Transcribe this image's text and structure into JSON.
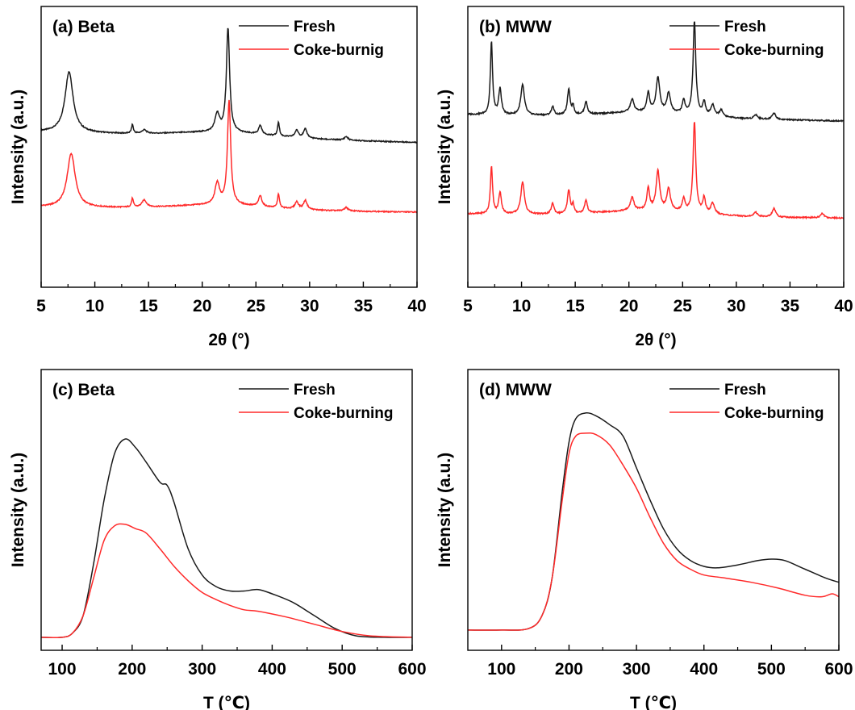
{
  "colors": {
    "fresh": "#1a1a1a",
    "coke": "#ff2a2a",
    "axis": "#000000"
  },
  "chart_data": [
    {
      "id": "a",
      "type": "line",
      "title": "(a) Beta",
      "xlabel": "2θ (°)",
      "ylabel": "Intensity (a.u.)",
      "xlim": [
        5,
        40
      ],
      "xticks": [
        5,
        10,
        15,
        20,
        25,
        30,
        35,
        40
      ],
      "grid": false,
      "legend": "top-right",
      "series": [
        {
          "name": "Fresh",
          "key": "fresh",
          "baseline": 0.42,
          "slope": -0.06,
          "peaks": [
            [
              7.6,
              0.34,
              0.45
            ],
            [
              13.5,
              0.05,
              0.1
            ],
            [
              14.6,
              0.02,
              0.25
            ],
            [
              21.4,
              0.1,
              0.25
            ],
            [
              22.4,
              0.58,
              0.18
            ],
            [
              25.4,
              0.05,
              0.18
            ],
            [
              27.1,
              0.08,
              0.1
            ],
            [
              28.8,
              0.04,
              0.2
            ],
            [
              29.6,
              0.05,
              0.2
            ],
            [
              33.4,
              0.02,
              0.2
            ]
          ]
        },
        {
          "name": "Coke-burnig",
          "key": "coke",
          "baseline": 0.0,
          "slope": -0.03,
          "peaks": [
            [
              7.8,
              0.3,
              0.45
            ],
            [
              13.5,
              0.05,
              0.1
            ],
            [
              14.6,
              0.04,
              0.25
            ],
            [
              21.4,
              0.12,
              0.25
            ],
            [
              22.5,
              0.58,
              0.18
            ],
            [
              25.4,
              0.06,
              0.18
            ],
            [
              27.1,
              0.08,
              0.1
            ],
            [
              28.8,
              0.04,
              0.2
            ],
            [
              29.6,
              0.05,
              0.2
            ],
            [
              33.4,
              0.02,
              0.2
            ]
          ]
        }
      ]
    },
    {
      "id": "b",
      "type": "line",
      "title": "(b) MWW",
      "xlabel": "2θ (°)",
      "ylabel": "Intensity (a.u.)",
      "xlim": [
        5,
        40
      ],
      "xticks": [
        5,
        10,
        15,
        20,
        25,
        30,
        35,
        40
      ],
      "grid": false,
      "legend": "top-right",
      "series": [
        {
          "name": "Fresh",
          "key": "fresh",
          "baseline": 0.5,
          "slope": -0.03,
          "peaks": [
            [
              7.2,
              0.34,
              0.12
            ],
            [
              8.0,
              0.12,
              0.15
            ],
            [
              10.1,
              0.14,
              0.2
            ],
            [
              12.9,
              0.04,
              0.15
            ],
            [
              14.4,
              0.12,
              0.15
            ],
            [
              14.8,
              0.04,
              0.1
            ],
            [
              16.0,
              0.06,
              0.15
            ],
            [
              20.3,
              0.06,
              0.2
            ],
            [
              21.8,
              0.09,
              0.15
            ],
            [
              22.7,
              0.16,
              0.2
            ],
            [
              23.7,
              0.09,
              0.2
            ],
            [
              25.1,
              0.06,
              0.15
            ],
            [
              26.1,
              0.43,
              0.15
            ],
            [
              27.0,
              0.06,
              0.15
            ],
            [
              27.8,
              0.05,
              0.2
            ],
            [
              28.6,
              0.03,
              0.2
            ],
            [
              31.8,
              0.02,
              0.2
            ],
            [
              33.5,
              0.03,
              0.2
            ]
          ]
        },
        {
          "name": "Coke-burning",
          "key": "coke",
          "baseline": 0.04,
          "slope": -0.02,
          "peaks": [
            [
              7.2,
              0.22,
              0.12
            ],
            [
              8.0,
              0.1,
              0.15
            ],
            [
              10.1,
              0.15,
              0.2
            ],
            [
              12.9,
              0.05,
              0.15
            ],
            [
              14.4,
              0.11,
              0.15
            ],
            [
              14.8,
              0.04,
              0.1
            ],
            [
              16.0,
              0.06,
              0.15
            ],
            [
              20.3,
              0.06,
              0.2
            ],
            [
              21.8,
              0.1,
              0.15
            ],
            [
              22.7,
              0.18,
              0.2
            ],
            [
              23.7,
              0.1,
              0.2
            ],
            [
              25.1,
              0.06,
              0.15
            ],
            [
              26.1,
              0.42,
              0.15
            ],
            [
              27.0,
              0.07,
              0.15
            ],
            [
              27.8,
              0.05,
              0.2
            ],
            [
              31.8,
              0.02,
              0.2
            ],
            [
              33.5,
              0.04,
              0.2
            ],
            [
              38.0,
              0.02,
              0.2
            ]
          ]
        }
      ]
    },
    {
      "id": "c",
      "type": "line",
      "title": "(c) Beta",
      "xlabel": "T (℃)",
      "ylabel": "Intensity (a.u.)",
      "xlim": [
        70,
        600
      ],
      "xticks": [
        100,
        200,
        300,
        400,
        500,
        600
      ],
      "grid": false,
      "legend": "top-right",
      "series": [
        {
          "name": "Fresh",
          "key": "fresh",
          "points": [
            [
              70,
              0.045
            ],
            [
              100,
              0.045
            ],
            [
              115,
              0.06
            ],
            [
              130,
              0.12
            ],
            [
              145,
              0.3
            ],
            [
              160,
              0.52
            ],
            [
              175,
              0.68
            ],
            [
              190,
              0.73
            ],
            [
              205,
              0.7
            ],
            [
              220,
              0.65
            ],
            [
              240,
              0.58
            ],
            [
              250,
              0.57
            ],
            [
              260,
              0.51
            ],
            [
              280,
              0.35
            ],
            [
              300,
              0.26
            ],
            [
              320,
              0.22
            ],
            [
              340,
              0.205
            ],
            [
              360,
              0.205
            ],
            [
              380,
              0.21
            ],
            [
              400,
              0.195
            ],
            [
              430,
              0.165
            ],
            [
              460,
              0.12
            ],
            [
              490,
              0.075
            ],
            [
              520,
              0.05
            ],
            [
              560,
              0.045
            ],
            [
              600,
              0.045
            ]
          ]
        },
        {
          "name": "Coke-burning",
          "key": "coke",
          "points": [
            [
              70,
              0.045
            ],
            [
              100,
              0.045
            ],
            [
              115,
              0.06
            ],
            [
              130,
              0.12
            ],
            [
              145,
              0.25
            ],
            [
              160,
              0.38
            ],
            [
              175,
              0.43
            ],
            [
              190,
              0.435
            ],
            [
              205,
              0.42
            ],
            [
              220,
              0.405
            ],
            [
              240,
              0.35
            ],
            [
              260,
              0.29
            ],
            [
              280,
              0.24
            ],
            [
              300,
              0.2
            ],
            [
              320,
              0.175
            ],
            [
              340,
              0.155
            ],
            [
              360,
              0.14
            ],
            [
              380,
              0.135
            ],
            [
              420,
              0.115
            ],
            [
              460,
              0.09
            ],
            [
              500,
              0.065
            ],
            [
              540,
              0.05
            ],
            [
              600,
              0.045
            ]
          ]
        }
      ]
    },
    {
      "id": "d",
      "type": "line",
      "title": "(d) MWW",
      "xlabel": "T (℃)",
      "ylabel": "Intensity (a.u.)",
      "xlim": [
        50,
        600
      ],
      "xticks": [
        100,
        200,
        300,
        400,
        500,
        600
      ],
      "grid": false,
      "legend": "top-right",
      "series": [
        {
          "name": "Fresh",
          "key": "fresh",
          "points": [
            [
              50,
              0.07
            ],
            [
              100,
              0.07
            ],
            [
              140,
              0.075
            ],
            [
              160,
              0.12
            ],
            [
              175,
              0.25
            ],
            [
              190,
              0.55
            ],
            [
              200,
              0.72
            ],
            [
              210,
              0.8
            ],
            [
              225,
              0.82
            ],
            [
              240,
              0.81
            ],
            [
              260,
              0.78
            ],
            [
              280,
              0.74
            ],
            [
              300,
              0.63
            ],
            [
              320,
              0.52
            ],
            [
              340,
              0.42
            ],
            [
              360,
              0.35
            ],
            [
              380,
              0.31
            ],
            [
              400,
              0.29
            ],
            [
              420,
              0.285
            ],
            [
              450,
              0.295
            ],
            [
              480,
              0.31
            ],
            [
              500,
              0.315
            ],
            [
              520,
              0.31
            ],
            [
              550,
              0.28
            ],
            [
              580,
              0.25
            ],
            [
              600,
              0.235
            ]
          ]
        },
        {
          "name": "Coke-burning",
          "key": "coke",
          "points": [
            [
              50,
              0.07
            ],
            [
              100,
              0.07
            ],
            [
              140,
              0.075
            ],
            [
              160,
              0.12
            ],
            [
              175,
              0.25
            ],
            [
              190,
              0.52
            ],
            [
              200,
              0.68
            ],
            [
              210,
              0.74
            ],
            [
              225,
              0.75
            ],
            [
              240,
              0.745
            ],
            [
              260,
              0.71
            ],
            [
              280,
              0.64
            ],
            [
              300,
              0.56
            ],
            [
              320,
              0.46
            ],
            [
              340,
              0.37
            ],
            [
              360,
              0.31
            ],
            [
              380,
              0.28
            ],
            [
              400,
              0.26
            ],
            [
              430,
              0.25
            ],
            [
              470,
              0.235
            ],
            [
              510,
              0.215
            ],
            [
              550,
              0.19
            ],
            [
              575,
              0.185
            ],
            [
              590,
              0.195
            ],
            [
              600,
              0.185
            ]
          ]
        }
      ]
    }
  ]
}
